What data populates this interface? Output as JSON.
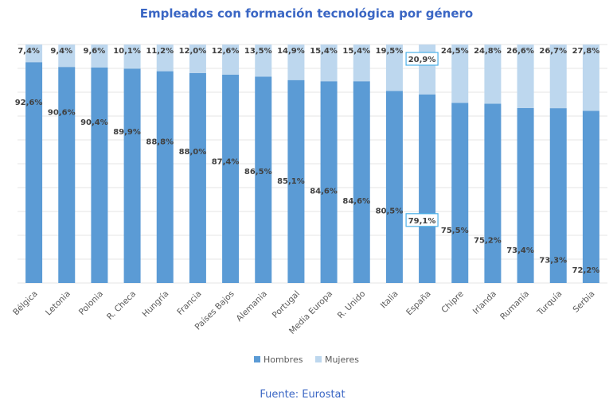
{
  "chart_data": {
    "type": "bar",
    "stacked": true,
    "percent_stacked": true,
    "title": "Empleados con formación tecnológica por género",
    "source": "Fuente: Eurostat",
    "categories": [
      "Bélgica",
      "Letonia",
      "Polonia",
      "R. Checa",
      "Hungría",
      "Francia",
      "Países Bajos",
      "Alemania",
      "Portugal",
      "Media Europa",
      "R. Unido",
      "Italia",
      "España",
      "Chipre",
      "Irlanda",
      "Rumanía",
      "Turquía",
      "Serbia"
    ],
    "series": [
      {
        "name": "Hombres",
        "color": "#5b9bd5",
        "values": [
          92.6,
          90.6,
          90.4,
          89.9,
          88.8,
          88.0,
          87.4,
          86.5,
          85.1,
          84.6,
          84.6,
          80.5,
          79.1,
          75.5,
          75.2,
          73.4,
          73.3,
          72.2
        ],
        "labels": [
          "92,6%",
          "90,6%",
          "90,4%",
          "89,9%",
          "88,8%",
          "88,0%",
          "87,4%",
          "86,5%",
          "85,1%",
          "84,6%",
          "84,6%",
          "80,5%",
          "79,1%",
          "75,5%",
          "75,2%",
          "73,4%",
          "73,3%",
          "72,2%"
        ]
      },
      {
        "name": "Mujeres",
        "color": "#bdd7ee",
        "values": [
          7.4,
          9.4,
          9.6,
          10.1,
          11.2,
          12.0,
          12.6,
          13.5,
          14.9,
          15.4,
          15.4,
          19.5,
          20.9,
          24.5,
          24.8,
          26.6,
          26.7,
          27.8
        ],
        "labels": [
          "7,4%",
          "9,4%",
          "9,6%",
          "10,1%",
          "11,2%",
          "12,0%",
          "12,6%",
          "13,5%",
          "14,9%",
          "15,4%",
          "15,4%",
          "19,5%",
          "20,9%",
          "24,5%",
          "24,8%",
          "26,6%",
          "26,7%",
          "27,8%"
        ]
      }
    ],
    "highlighted_category": "España",
    "ylim": [
      0,
      100
    ],
    "grid": true,
    "legend_position": "bottom"
  }
}
